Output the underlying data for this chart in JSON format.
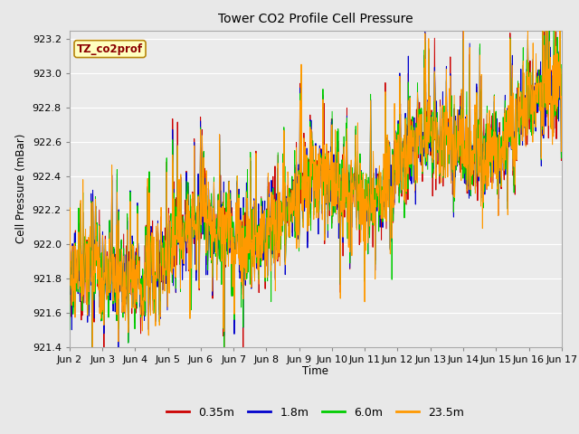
{
  "title": "Tower CO2 Profile Cell Pressure",
  "ylabel": "Cell Pressure (mBar)",
  "xlabel": "Time",
  "annotation": "TZ_co2prof",
  "annotation_color": "#8B0000",
  "annotation_bg": "#FFFFC0",
  "annotation_border": "#B8860B",
  "ylim": [
    921.4,
    923.25
  ],
  "yticks": [
    921.4,
    921.6,
    921.8,
    922.0,
    922.2,
    922.4,
    922.6,
    922.8,
    923.0,
    923.2
  ],
  "xtick_labels": [
    "Jun 2",
    "Jun 3",
    "Jun 4",
    "Jun 5",
    "Jun 6",
    "Jun 7",
    "Jun 8",
    "Jun 9",
    "Jun 10",
    "Jun 11",
    "Jun 12",
    "Jun 13",
    "Jun 14",
    "Jun 15",
    "Jun 16",
    "Jun 17"
  ],
  "series_colors": [
    "#CC0000",
    "#0000CC",
    "#00CC00",
    "#FF9900"
  ],
  "series_labels": [
    "0.35m",
    "1.8m",
    "6.0m",
    "23.5m"
  ],
  "bg_color": "#E8E8E8",
  "plot_bg_color": "#EBEBEB",
  "grid_color": "#FFFFFF",
  "linewidth": 0.7,
  "n_points": 1500,
  "seed": 42
}
